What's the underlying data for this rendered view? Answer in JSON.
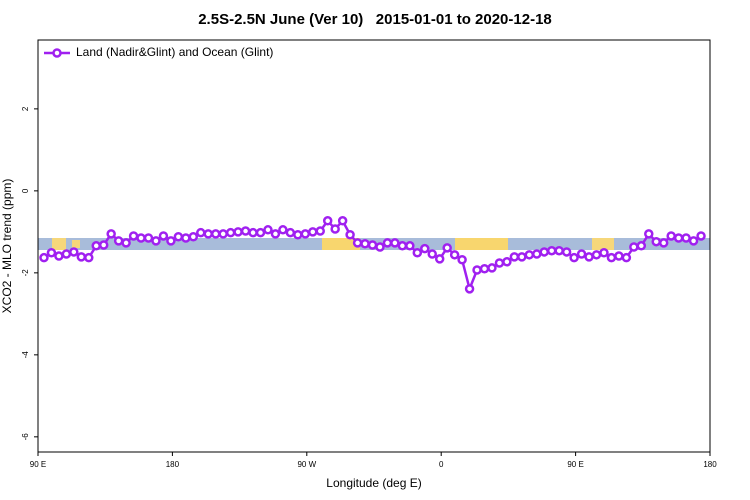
{
  "chart_data": {
    "type": "line",
    "title": "2.5S-2.5N June (Ver 10)   2015-01-01 to 2020-12-18",
    "xlabel": "Longitude (deg E)",
    "ylabel": "XCO2 - MLO trend (ppm)",
    "xlim": [
      90,
      540
    ],
    "ylim": [
      -6.37,
      3.68
    ],
    "xticks": [
      {
        "value": 90,
        "label": "90 E"
      },
      180,
      {
        "value": 270,
        "label": "90 W"
      },
      {
        "value": 360,
        "label": "0"
      },
      {
        "value": 450,
        "label": "90 E"
      },
      {
        "value": 540,
        "label": "180"
      }
    ],
    "yticks": [
      -6,
      -4,
      -2,
      0,
      2
    ],
    "legend": "top-left",
    "x": [
      94,
      99,
      104,
      109,
      114,
      119,
      124,
      129,
      134,
      139,
      144,
      149,
      154,
      159,
      164,
      169,
      174,
      179,
      184,
      189,
      194,
      199,
      204,
      209,
      214,
      219,
      224,
      229,
      234,
      239,
      244,
      249,
      254,
      259,
      264,
      269,
      274,
      279,
      284,
      289,
      294,
      299,
      304,
      309,
      314,
      319,
      324,
      329,
      334,
      339,
      344,
      349,
      354,
      359,
      364,
      369,
      374,
      379,
      384,
      389,
      394,
      399,
      404,
      409,
      414,
      419,
      424,
      429,
      434,
      439,
      444,
      449,
      454,
      459,
      464,
      469,
      474,
      479,
      484,
      489,
      494,
      499,
      504,
      509,
      514,
      519,
      524,
      529,
      534
    ],
    "series": [
      {
        "name": "Land (Nadir&Glint) and Ocean (Glint)",
        "color": "#a020f0",
        "values": [
          -1.63,
          -1.51,
          -1.59,
          -1.54,
          -1.49,
          -1.61,
          -1.63,
          -1.34,
          -1.32,
          -1.05,
          -1.22,
          -1.27,
          -1.1,
          -1.15,
          -1.15,
          -1.22,
          -1.1,
          -1.22,
          -1.12,
          -1.15,
          -1.12,
          -1.02,
          -1.05,
          -1.05,
          -1.05,
          -1.02,
          -1.0,
          -0.98,
          -1.02,
          -1.02,
          -0.95,
          -1.05,
          -0.95,
          -1.02,
          -1.07,
          -1.05,
          -1.0,
          -0.98,
          -0.73,
          -0.93,
          -0.73,
          -1.07,
          -1.27,
          -1.29,
          -1.32,
          -1.37,
          -1.27,
          -1.27,
          -1.34,
          -1.34,
          -1.51,
          -1.41,
          -1.54,
          -1.66,
          -1.39,
          -1.56,
          -1.68,
          -2.39,
          -1.93,
          -1.9,
          -1.88,
          -1.76,
          -1.73,
          -1.61,
          -1.61,
          -1.56,
          -1.54,
          -1.49,
          -1.46,
          -1.46,
          -1.49,
          -1.63,
          -1.54,
          -1.61,
          -1.56,
          -1.51,
          -1.63,
          -1.59,
          -1.63,
          -1.37,
          -1.34,
          -1.05,
          -1.24,
          -1.27,
          -1.1,
          -1.15,
          -1.15,
          -1.22,
          -1.1
        ]
      }
    ]
  }
}
